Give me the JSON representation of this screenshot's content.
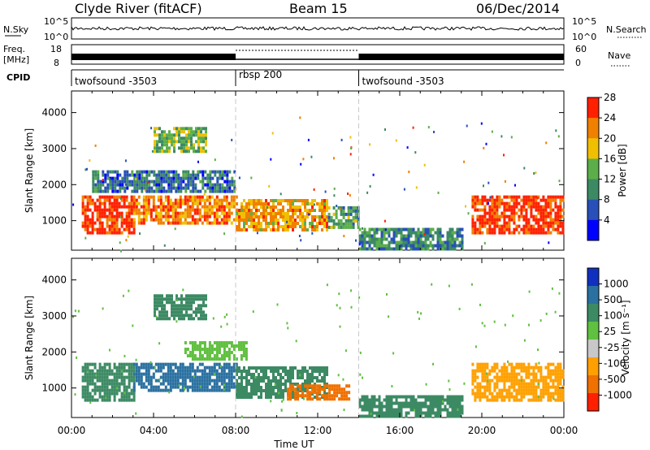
{
  "header": {
    "station": "Clyde River (fitACF)",
    "beam": "Beam 15",
    "date": "06/Dec/2014"
  },
  "status_panel": {
    "nsky_label": "N.Sky",
    "nsearch_label": "N.Search",
    "nsky_ticks": [
      "10^5",
      "10^0"
    ],
    "nsearch_ticks": [
      "10^5",
      "10^0"
    ],
    "freq_label_1": "Freq.",
    "freq_label_2": "[MHz]",
    "freq_ticks": [
      "18",
      "8"
    ],
    "nave_label": "Nave",
    "nave_ticks": [
      "60",
      "0"
    ],
    "cpid_label": "CPID",
    "cpid_segments": [
      {
        "name": "twofsound -3503",
        "start": 0,
        "end": 8
      },
      {
        "name": "rbsp 200",
        "start": 8,
        "end": 14
      },
      {
        "name": "twofsound -3503",
        "start": 14,
        "end": 24
      }
    ]
  },
  "chart_data": [
    {
      "type": "heatmap",
      "panel": "power",
      "ylabel": "Slant Range [km]",
      "xlabel": "Time UT",
      "xlim": [
        0,
        24
      ],
      "ylim": [
        180,
        4600
      ],
      "xticks": [
        "00:00",
        "04:00",
        "08:00",
        "12:00",
        "16:00",
        "20:00",
        "00:00"
      ],
      "yticks": [
        1000,
        2000,
        3000,
        4000
      ],
      "colorbar": {
        "label": "Power [dB]",
        "ticks": [
          "4",
          "8",
          "12",
          "16",
          "20",
          "24",
          "28"
        ],
        "colors": [
          "#0000ff",
          "#2850b8",
          "#3c8a64",
          "#5cae4a",
          "#f0c000",
          "#f08000",
          "#ff2000"
        ]
      },
      "regions": [
        {
          "t": [
            0.5,
            3.0
          ],
          "r": [
            700,
            1700
          ],
          "value": 26
        },
        {
          "t": [
            3.0,
            8.0
          ],
          "r": [
            900,
            1700
          ],
          "value": 22
        },
        {
          "t": [
            8.0,
            12.5
          ],
          "r": [
            700,
            1600
          ],
          "value": 20
        },
        {
          "t": [
            12.5,
            14.0
          ],
          "r": [
            800,
            1400
          ],
          "value": 12
        },
        {
          "t": [
            14.0,
            19.0
          ],
          "r": [
            200,
            800
          ],
          "value": 10
        },
        {
          "t": [
            19.5,
            23.9
          ],
          "r": [
            700,
            1700
          ],
          "value": 26
        },
        {
          "t": [
            4.0,
            6.5
          ],
          "r": [
            2900,
            3600
          ],
          "value": 14
        },
        {
          "t": [
            1.0,
            8.0
          ],
          "r": [
            1800,
            2400
          ],
          "value": 8
        }
      ]
    },
    {
      "type": "heatmap",
      "panel": "velocity",
      "ylabel": "Slant Range [km]",
      "xlabel": "Time UT",
      "xlim": [
        0,
        24
      ],
      "ylim": [
        180,
        4600
      ],
      "xticks": [
        "00:00",
        "04:00",
        "08:00",
        "12:00",
        "16:00",
        "20:00",
        "00:00"
      ],
      "yticks": [
        1000,
        2000,
        3000,
        4000
      ],
      "colorbar": {
        "label": "Velocity [m s⁻¹]",
        "ticks": [
          "1000",
          "500",
          "100",
          "25",
          "-25",
          "-100",
          "-500",
          "-1000"
        ],
        "colors": [
          "#1030c0",
          "#2a70a0",
          "#3c8a64",
          "#60c040",
          "#c8c8c8",
          "#ffa000",
          "#f07000",
          "#ff2000"
        ]
      },
      "regions": [
        {
          "t": [
            0.5,
            3.0
          ],
          "r": [
            700,
            1700
          ],
          "value": 100
        },
        {
          "t": [
            3.0,
            8.0
          ],
          "r": [
            900,
            1700
          ],
          "value": 500
        },
        {
          "t": [
            8.0,
            12.5
          ],
          "r": [
            700,
            1600
          ],
          "value": 100
        },
        {
          "t": [
            10.5,
            13.5
          ],
          "r": [
            700,
            1100
          ],
          "value": -500
        },
        {
          "t": [
            14.0,
            19.0
          ],
          "r": [
            200,
            800
          ],
          "value": 100
        },
        {
          "t": [
            19.5,
            23.9
          ],
          "r": [
            700,
            1700
          ],
          "value": -100
        },
        {
          "t": [
            4.0,
            6.5
          ],
          "r": [
            2900,
            3600
          ],
          "value": 100
        },
        {
          "t": [
            5.5,
            8.5
          ],
          "r": [
            1800,
            2300
          ],
          "value": 25
        }
      ]
    }
  ]
}
